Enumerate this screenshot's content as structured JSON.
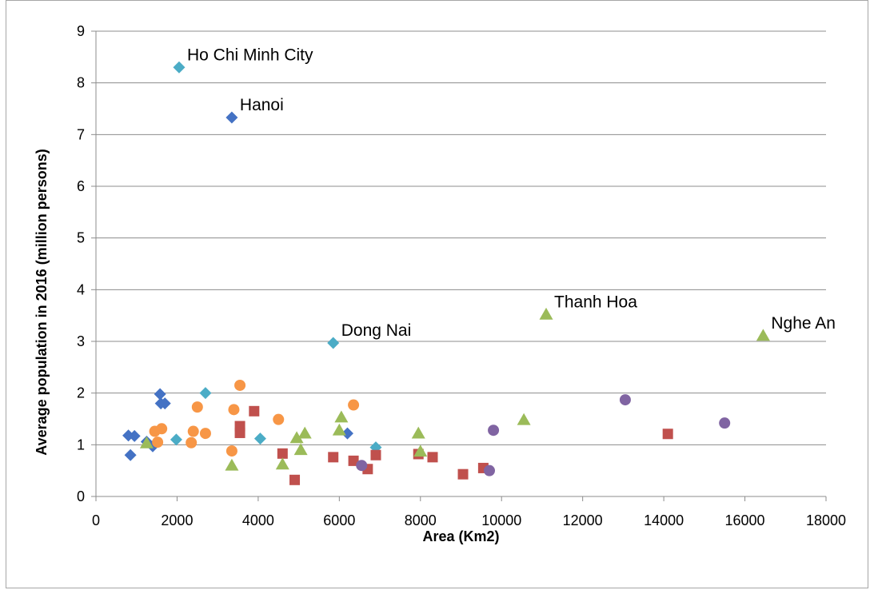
{
  "chart_data": {
    "type": "scatter",
    "title": "",
    "xlabel": "Area (Km2)",
    "ylabel": "Average population in 2016 (million persons)",
    "xlim": [
      0,
      18000
    ],
    "ylim": [
      0,
      9
    ],
    "xticks": [
      0,
      2000,
      4000,
      6000,
      8000,
      10000,
      12000,
      14000,
      16000,
      18000
    ],
    "yticks": [
      0,
      1,
      2,
      3,
      4,
      5,
      6,
      7,
      8,
      9
    ],
    "grid": "horizontal",
    "legend": "none",
    "colors": {
      "grid": "#8c8c8c",
      "axis": "#8c8c8c"
    },
    "series": [
      {
        "marker": "diamond",
        "color": "#4472c4",
        "points": [
          [
            800,
            1.18
          ],
          [
            950,
            1.17
          ],
          [
            850,
            0.8
          ],
          [
            1250,
            1.06
          ],
          [
            1400,
            0.97
          ],
          [
            1580,
            1.98
          ],
          [
            1600,
            1.8
          ],
          [
            1700,
            1.8
          ],
          [
            3350,
            7.33
          ],
          [
            6200,
            1.22
          ]
        ]
      },
      {
        "marker": "diamond",
        "color": "#4bacc6",
        "points": [
          [
            2050,
            8.3
          ],
          [
            1980,
            1.1
          ],
          [
            2700,
            2.0
          ],
          [
            4050,
            1.12
          ],
          [
            5850,
            2.97
          ],
          [
            6900,
            0.95
          ]
        ]
      },
      {
        "marker": "circle",
        "color": "#f79646",
        "points": [
          [
            1450,
            1.26
          ],
          [
            1520,
            1.05
          ],
          [
            1620,
            1.31
          ],
          [
            2350,
            1.04
          ],
          [
            2400,
            1.26
          ],
          [
            2500,
            1.73
          ],
          [
            2700,
            1.22
          ],
          [
            3350,
            0.88
          ],
          [
            3400,
            1.68
          ],
          [
            3550,
            2.15
          ],
          [
            4500,
            1.49
          ],
          [
            6350,
            1.77
          ]
        ]
      },
      {
        "marker": "square",
        "color": "#c0504d",
        "points": [
          [
            3550,
            1.36
          ],
          [
            3550,
            1.23
          ],
          [
            3900,
            1.65
          ],
          [
            4600,
            0.83
          ],
          [
            4900,
            0.32
          ],
          [
            5850,
            0.76
          ],
          [
            6350,
            0.69
          ],
          [
            6700,
            0.53
          ],
          [
            6900,
            0.8
          ],
          [
            7950,
            0.82
          ],
          [
            8300,
            0.76
          ],
          [
            9050,
            0.43
          ],
          [
            9550,
            0.55
          ],
          [
            14100,
            1.21
          ]
        ]
      },
      {
        "marker": "triangle",
        "color": "#9bbb59",
        "points": [
          [
            1250,
            1.03
          ],
          [
            3350,
            0.6
          ],
          [
            4600,
            0.62
          ],
          [
            4950,
            1.13
          ],
          [
            5050,
            0.9
          ],
          [
            5150,
            1.22
          ],
          [
            6000,
            1.28
          ],
          [
            6050,
            1.53
          ],
          [
            7950,
            1.22
          ],
          [
            8000,
            0.87
          ],
          [
            10550,
            1.48
          ],
          [
            11100,
            3.52
          ],
          [
            16450,
            3.11
          ]
        ]
      },
      {
        "marker": "circle",
        "color": "#8064a2",
        "points": [
          [
            6550,
            0.6
          ],
          [
            9700,
            0.5
          ],
          [
            9800,
            1.28
          ],
          [
            13050,
            1.87
          ],
          [
            15500,
            1.42
          ]
        ]
      }
    ],
    "annotations": [
      {
        "text": "Ho Chi Minh City",
        "x": 2050,
        "y": 8.3
      },
      {
        "text": "Hanoi",
        "x": 3350,
        "y": 7.33
      },
      {
        "text": "Dong Nai",
        "x": 5850,
        "y": 2.97
      },
      {
        "text": "Thanh Hoa",
        "x": 11100,
        "y": 3.52
      },
      {
        "text": "Nghe An",
        "x": 16450,
        "y": 3.11
      }
    ]
  }
}
